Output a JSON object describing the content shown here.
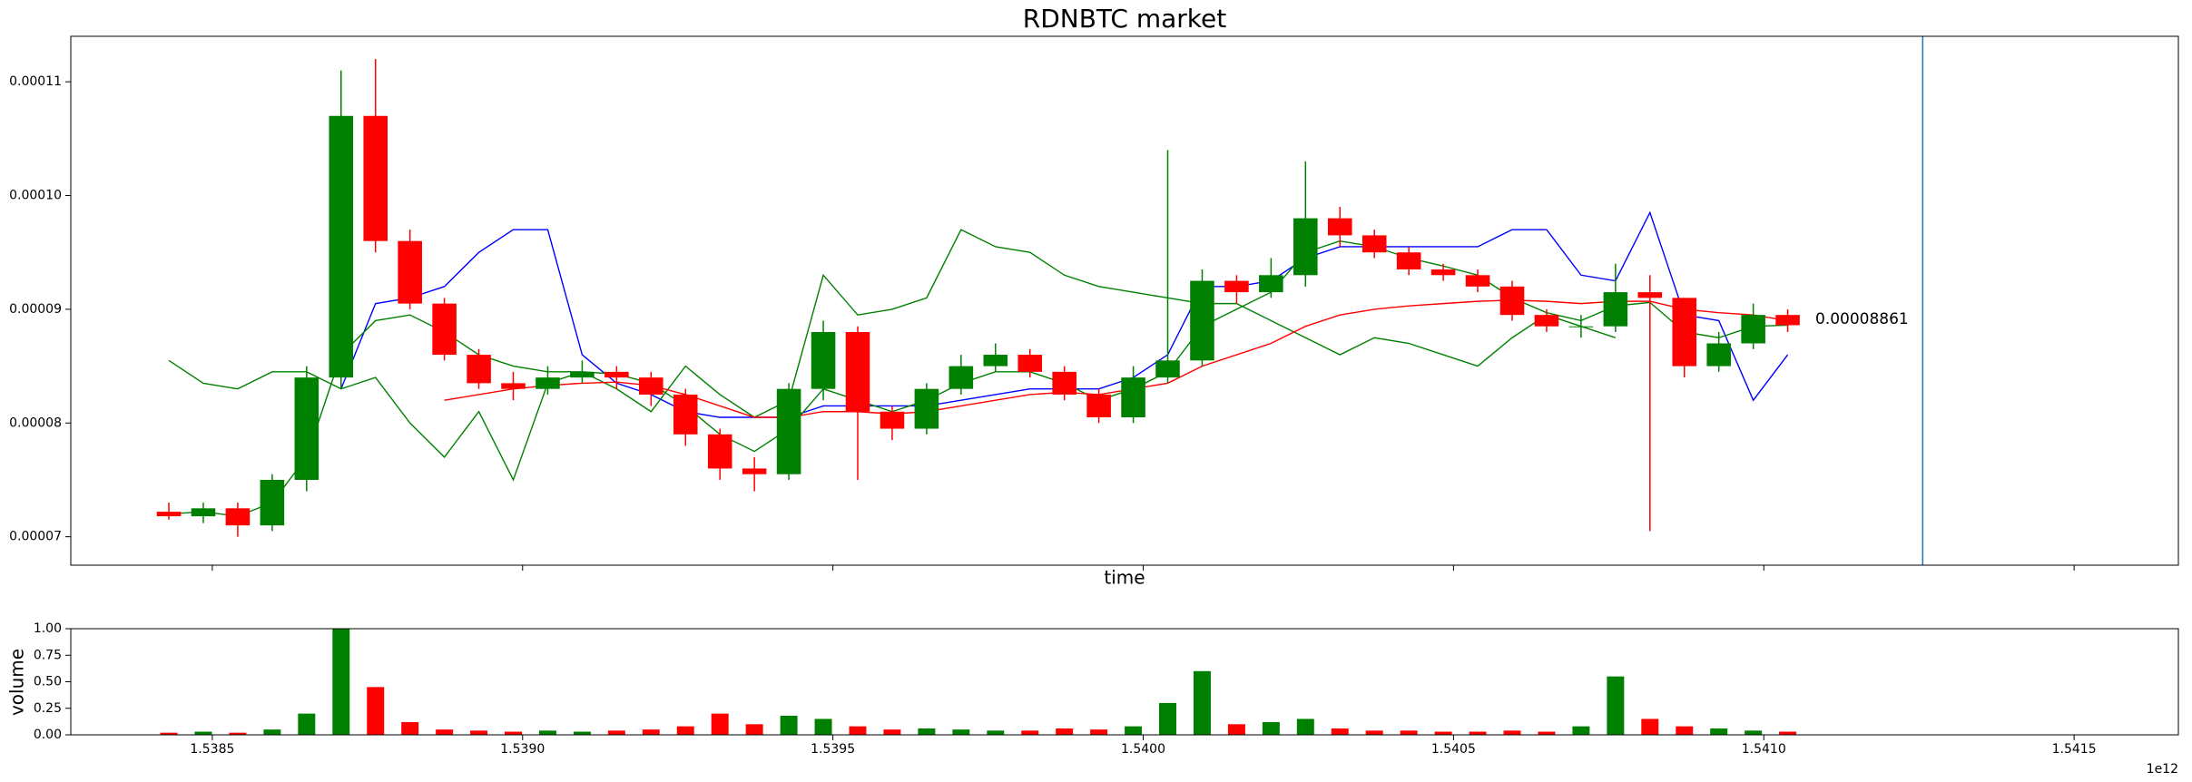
{
  "chart_data": [
    {
      "type": "candlestick",
      "title": "RDNBTC market",
      "xlabel": "time",
      "annotation": "0.00008861",
      "xlim": [
        1.538272,
        1.541668
      ],
      "ylim": [
        6.75e-05,
        0.000114
      ],
      "yticks": [
        {
          "value": 7e-05,
          "label": "0.00007"
        },
        {
          "value": 8e-05,
          "label": "0.00008"
        },
        {
          "value": 9e-05,
          "label": "0.00009"
        },
        {
          "value": 0.0001,
          "label": "0.00010"
        },
        {
          "value": 0.00011,
          "label": "0.00011"
        }
      ],
      "vline": 1.541256,
      "vline_color": "#1f77b4",
      "up_color": "#008000",
      "down_color": "#ff0000",
      "x": [
        1.53843,
        1.5384855,
        1.538541,
        1.5385965,
        1.538652,
        1.5387075,
        1.538763,
        1.5388185,
        1.538874,
        1.5389295,
        1.538985,
        1.5390405,
        1.539096,
        1.5391515,
        1.539207,
        1.5392625,
        1.539318,
        1.5393735,
        1.539429,
        1.5394845,
        1.53954,
        1.5395955,
        1.539651,
        1.5397065,
        1.539762,
        1.5398175,
        1.539873,
        1.5399285,
        1.539984,
        1.5400395,
        1.540095,
        1.5401505,
        1.540206,
        1.5402615,
        1.540317,
        1.5403725,
        1.540428,
        1.5404835,
        1.540539,
        1.5405945,
        1.54065,
        1.5407055,
        1.540761,
        1.5408165,
        1.540872,
        1.5409275,
        1.540983,
        1.5410385
      ],
      "open": [
        7.22e-05,
        7.18e-05,
        7.25e-05,
        7.1e-05,
        7.5e-05,
        8.4e-05,
        0.000107,
        9.6e-05,
        9.05e-05,
        8.6e-05,
        8.35e-05,
        8.3e-05,
        8.4e-05,
        8.45e-05,
        8.4e-05,
        8.25e-05,
        7.9e-05,
        7.6e-05,
        7.55e-05,
        8.3e-05,
        8.8e-05,
        8.1e-05,
        7.95e-05,
        8.3e-05,
        8.5e-05,
        8.6e-05,
        8.45e-05,
        8.25e-05,
        8.05e-05,
        8.4e-05,
        8.55e-05,
        9.25e-05,
        9.15e-05,
        9.3e-05,
        9.8e-05,
        9.65e-05,
        9.5e-05,
        9.35e-05,
        9.3e-05,
        9.2e-05,
        8.95e-05,
        8.85e-05,
        8.85e-05,
        9.15e-05,
        9.1e-05,
        8.5e-05,
        8.7e-05,
        8.95e-05
      ],
      "high": [
        7.3e-05,
        7.3e-05,
        7.3e-05,
        7.55e-05,
        8.5e-05,
        0.000111,
        0.000112,
        9.7e-05,
        9.1e-05,
        8.65e-05,
        8.45e-05,
        8.5e-05,
        8.55e-05,
        8.5e-05,
        8.45e-05,
        8.3e-05,
        7.95e-05,
        7.7e-05,
        8.35e-05,
        8.9e-05,
        8.85e-05,
        8.15e-05,
        8.35e-05,
        8.6e-05,
        8.7e-05,
        8.65e-05,
        8.5e-05,
        8.3e-05,
        8.5e-05,
        0.000104,
        9.35e-05,
        9.3e-05,
        9.45e-05,
        0.000103,
        9.9e-05,
        9.7e-05,
        9.55e-05,
        9.4e-05,
        9.35e-05,
        9.25e-05,
        9e-05,
        8.95e-05,
        9.4e-05,
        9.3e-05,
        9.1e-05,
        8.8e-05,
        9.05e-05,
        9e-05
      ],
      "low": [
        7.15e-05,
        7.12e-05,
        7e-05,
        7.05e-05,
        7.4e-05,
        8.3e-05,
        9.5e-05,
        9e-05,
        8.55e-05,
        8.3e-05,
        8.2e-05,
        8.25e-05,
        8.35e-05,
        8.3e-05,
        8.15e-05,
        7.8e-05,
        7.5e-05,
        7.4e-05,
        7.5e-05,
        8.2e-05,
        7.5e-05,
        7.85e-05,
        7.9e-05,
        8.25e-05,
        8.45e-05,
        8.4e-05,
        8.2e-05,
        8e-05,
        8e-05,
        8.35e-05,
        8.5e-05,
        9.05e-05,
        9.1e-05,
        9.2e-05,
        9.55e-05,
        9.45e-05,
        9.3e-05,
        9.25e-05,
        9.15e-05,
        8.9e-05,
        8.8e-05,
        8.75e-05,
        8.8e-05,
        7.05e-05,
        8.4e-05,
        8.45e-05,
        8.65e-05,
        8.8e-05
      ],
      "close": [
        7.18e-05,
        7.25e-05,
        7.1e-05,
        7.5e-05,
        8.4e-05,
        0.000107,
        9.6e-05,
        9.05e-05,
        8.6e-05,
        8.35e-05,
        8.3e-05,
        8.4e-05,
        8.45e-05,
        8.4e-05,
        8.25e-05,
        7.9e-05,
        7.6e-05,
        7.55e-05,
        8.3e-05,
        8.8e-05,
        8.1e-05,
        7.95e-05,
        8.3e-05,
        8.5e-05,
        8.6e-05,
        8.45e-05,
        8.25e-05,
        8.05e-05,
        8.4e-05,
        8.55e-05,
        9.25e-05,
        9.15e-05,
        9.3e-05,
        9.8e-05,
        9.65e-05,
        9.5e-05,
        9.35e-05,
        9.3e-05,
        9.2e-05,
        8.95e-05,
        8.85e-05,
        8.85e-05,
        9.15e-05,
        9.1e-05,
        8.5e-05,
        8.7e-05,
        8.95e-05,
        8.86e-05
      ],
      "series": [
        {
          "color": "#0000ff",
          "values": [
            null,
            null,
            null,
            null,
            null,
            8.3e-05,
            9.05e-05,
            9.1e-05,
            9.2e-05,
            9.5e-05,
            9.7e-05,
            9.7e-05,
            8.6e-05,
            8.35e-05,
            8.25e-05,
            8.1e-05,
            8.05e-05,
            8.05e-05,
            8.05e-05,
            8.15e-05,
            8.15e-05,
            8.15e-05,
            8.15e-05,
            8.2e-05,
            8.25e-05,
            8.3e-05,
            8.3e-05,
            8.3e-05,
            8.4e-05,
            8.6e-05,
            9.2e-05,
            9.2e-05,
            9.25e-05,
            9.45e-05,
            9.55e-05,
            9.55e-05,
            9.55e-05,
            9.55e-05,
            9.55e-05,
            9.7e-05,
            9.7e-05,
            9.3e-05,
            9.25e-05,
            9.85e-05,
            8.95e-05,
            8.9e-05,
            8.2e-05,
            8.6e-05
          ]
        },
        {
          "color": "#008000",
          "values": [
            8.55e-05,
            8.35e-05,
            8.3e-05,
            8.45e-05,
            8.45e-05,
            8.3e-05,
            8.4e-05,
            8e-05,
            7.7e-05,
            8.1e-05,
            7.5e-05,
            8.35e-05,
            8.45e-05,
            8.3e-05,
            8.1e-05,
            8.5e-05,
            8.25e-05,
            8.05e-05,
            8.2e-05,
            9.3e-05,
            8.95e-05,
            9e-05,
            9.1e-05,
            9.7e-05,
            9.55e-05,
            9.5e-05,
            9.3e-05,
            9.2e-05,
            9.15e-05,
            9.1e-05,
            9.05e-05,
            9.05e-05,
            8.9e-05,
            8.75e-05,
            8.6e-05,
            8.75e-05,
            8.7e-05,
            8.6e-05,
            8.5e-05,
            8.75e-05,
            8.95e-05,
            8.85e-05,
            8.75e-05,
            null,
            null,
            null,
            null,
            null
          ]
        },
        {
          "color": "#008000",
          "values": [
            7.2e-05,
            7.22e-05,
            7.18e-05,
            7.3e-05,
            7.7e-05,
            8.6e-05,
            8.9e-05,
            8.95e-05,
            8.8e-05,
            8.6e-05,
            8.5e-05,
            8.45e-05,
            8.45e-05,
            8.43e-05,
            8.35e-05,
            8.15e-05,
            7.9e-05,
            7.75e-05,
            7.95e-05,
            8.3e-05,
            8.2e-05,
            8.1e-05,
            8.2e-05,
            8.35e-05,
            8.45e-05,
            8.45e-05,
            8.35e-05,
            8.2e-05,
            8.3e-05,
            8.45e-05,
            8.85e-05,
            9e-05,
            9.15e-05,
            9.5e-05,
            9.6e-05,
            9.55e-05,
            9.45e-05,
            9.38e-05,
            9.3e-05,
            9.1e-05,
            8.97e-05,
            8.9e-05,
            9.03e-05,
            9.06e-05,
            8.8e-05,
            8.75e-05,
            8.85e-05,
            8.86e-05
          ]
        },
        {
          "color": "#ff0000",
          "values": [
            null,
            null,
            null,
            null,
            null,
            null,
            null,
            null,
            8.2e-05,
            8.25e-05,
            8.3e-05,
            8.33e-05,
            8.35e-05,
            8.36e-05,
            8.33e-05,
            8.25e-05,
            8.15e-05,
            8.05e-05,
            8.05e-05,
            8.1e-05,
            8.1e-05,
            8.08e-05,
            8.1e-05,
            8.15e-05,
            8.2e-05,
            8.25e-05,
            8.27e-05,
            8.25e-05,
            8.3e-05,
            8.35e-05,
            8.5e-05,
            8.6e-05,
            8.7e-05,
            8.85e-05,
            8.95e-05,
            9e-05,
            9.03e-05,
            9.05e-05,
            9.07e-05,
            9.08e-05,
            9.07e-05,
            9.05e-05,
            9.07e-05,
            9.07e-05,
            9e-05,
            8.97e-05,
            8.95e-05,
            8.9e-05
          ]
        }
      ]
    },
    {
      "type": "bar",
      "ylabel": "volume",
      "x_offset_label": "1e12",
      "xlim": [
        1.538272,
        1.541668
      ],
      "ylim": [
        0,
        1
      ],
      "xticks": [
        1.5385,
        {
          "value": 1.539,
          "label": "1.5390"
        },
        1.5395,
        {
          "value": 1.54,
          "label": "1.5400"
        },
        1.5405,
        {
          "value": 1.541,
          "label": "1.5410"
        },
        1.5415
      ],
      "yticks": [
        {
          "value": 0,
          "label": "0.00"
        },
        {
          "value": 0.25,
          "label": "0.25"
        },
        {
          "value": 0.5,
          "label": "0.50"
        },
        {
          "value": 0.75,
          "label": "0.75"
        },
        {
          "value": 1,
          "label": "1.00"
        }
      ],
      "values": [
        0.02,
        0.03,
        0.02,
        0.05,
        0.2,
        1.0,
        0.45,
        0.12,
        0.05,
        0.04,
        0.03,
        0.04,
        0.03,
        0.04,
        0.05,
        0.08,
        0.2,
        0.1,
        0.18,
        0.15,
        0.08,
        0.05,
        0.06,
        0.05,
        0.04,
        0.04,
        0.06,
        0.05,
        0.08,
        0.3,
        0.6,
        0.1,
        0.12,
        0.15,
        0.06,
        0.04,
        0.04,
        0.03,
        0.03,
        0.04,
        0.03,
        0.08,
        0.55,
        0.15,
        0.08,
        0.06,
        0.04,
        0.03
      ]
    }
  ]
}
